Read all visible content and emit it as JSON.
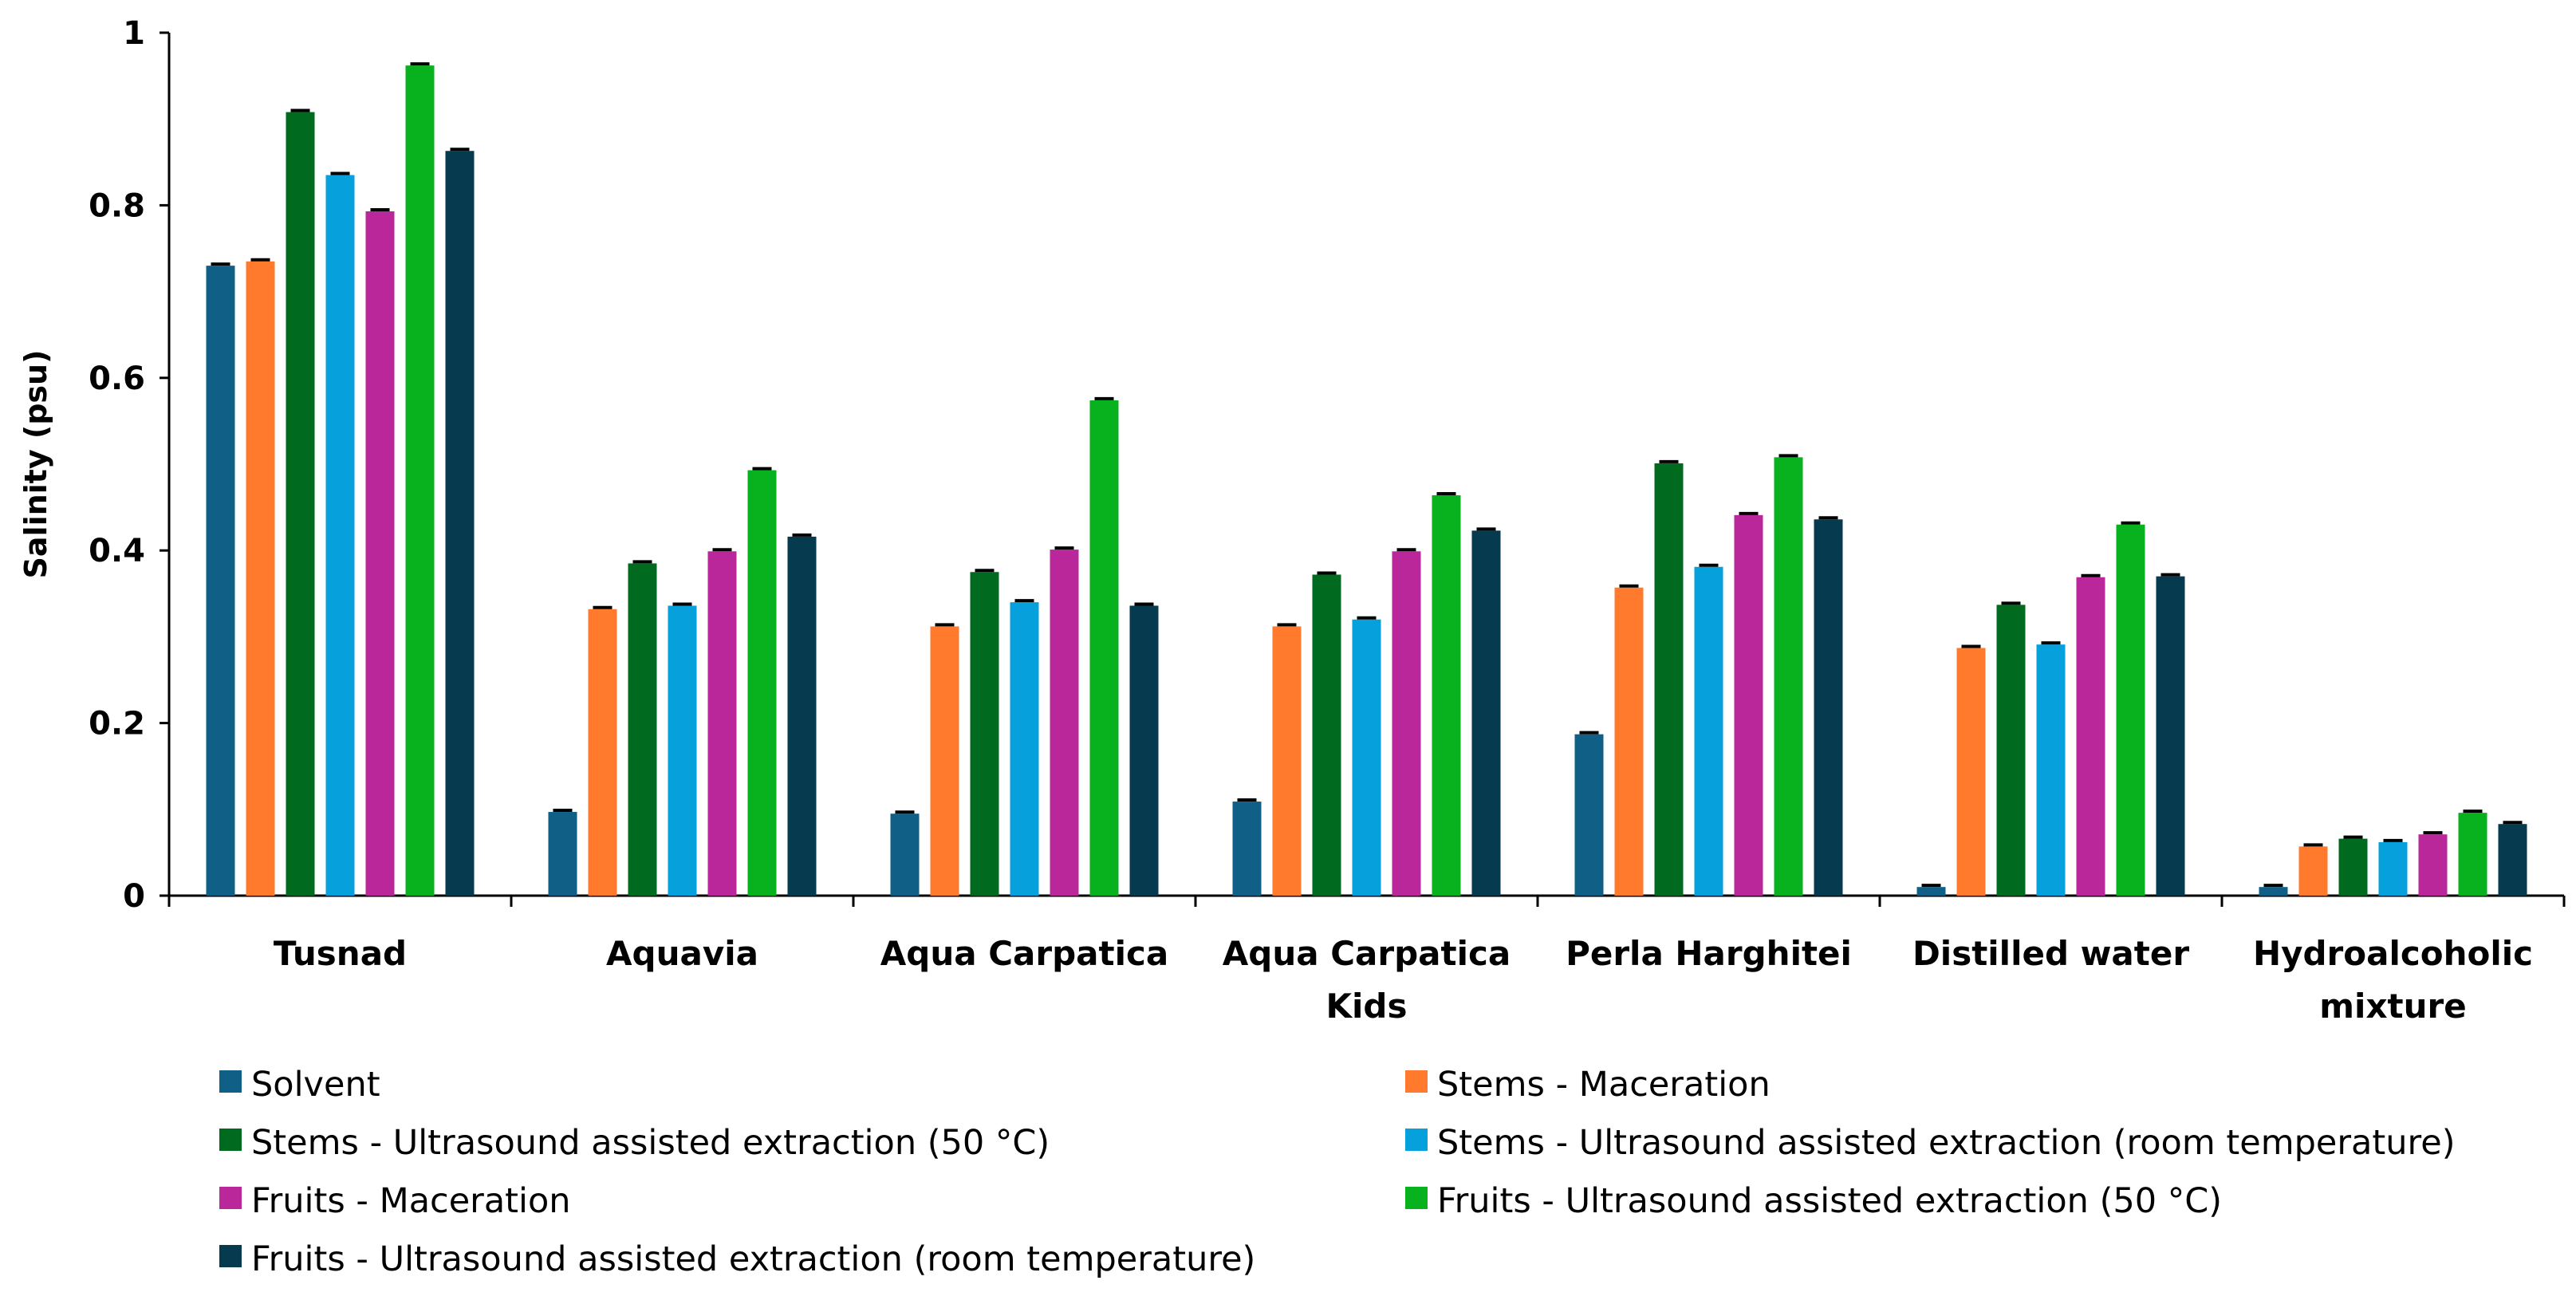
{
  "chart_data": {
    "type": "bar",
    "title": "",
    "xlabel": "",
    "ylabel": "Salinity (psu)",
    "ylim": [
      0,
      1
    ],
    "yticks": [
      "0",
      "0.2",
      "0.4",
      "0.6",
      "0.8",
      "1"
    ],
    "grid": false,
    "legend_position": "bottom",
    "categories": [
      [
        "Tusnad"
      ],
      [
        "Aquavia"
      ],
      [
        "Aqua Carpatica"
      ],
      [
        "Aqua Carpatica",
        "Kids"
      ],
      [
        "Perla Harghitei"
      ],
      [
        "Distilled water"
      ],
      [
        "Hydroalcoholic",
        "mixture"
      ]
    ],
    "series": [
      {
        "name": "Solvent",
        "color": "#0f5f86",
        "values": [
          0.73,
          0.097,
          0.095,
          0.109,
          0.187,
          0.01,
          0.01
        ]
      },
      {
        "name": "Stems - Maceration",
        "color": "#ff7a2c",
        "values": [
          0.735,
          0.332,
          0.312,
          0.312,
          0.357,
          0.287,
          0.057
        ]
      },
      {
        "name": "Stems - Ultrasound assisted extraction (50 °C)",
        "color": "#006b1f",
        "values": [
          0.908,
          0.385,
          0.375,
          0.372,
          0.501,
          0.337,
          0.066
        ]
      },
      {
        "name": "Stems - Ultrasound assisted extraction (room temperature)",
        "color": "#06a1dc",
        "values": [
          0.835,
          0.336,
          0.34,
          0.32,
          0.381,
          0.291,
          0.062
        ]
      },
      {
        "name": "Fruits - Maceration",
        "color": "#b9279b",
        "values": [
          0.793,
          0.399,
          0.401,
          0.399,
          0.441,
          0.369,
          0.071
        ]
      },
      {
        "name": "Fruits - Ultrasound assisted extraction (50 °C)",
        "color": "#07b21e",
        "values": [
          0.962,
          0.493,
          0.574,
          0.464,
          0.508,
          0.43,
          0.096
        ]
      },
      {
        "name": "Fruits - Ultrasound assisted extraction (room temperature)",
        "color": "#053a4f",
        "values": [
          0.863,
          0.416,
          0.336,
          0.423,
          0.436,
          0.37,
          0.083
        ]
      }
    ]
  }
}
